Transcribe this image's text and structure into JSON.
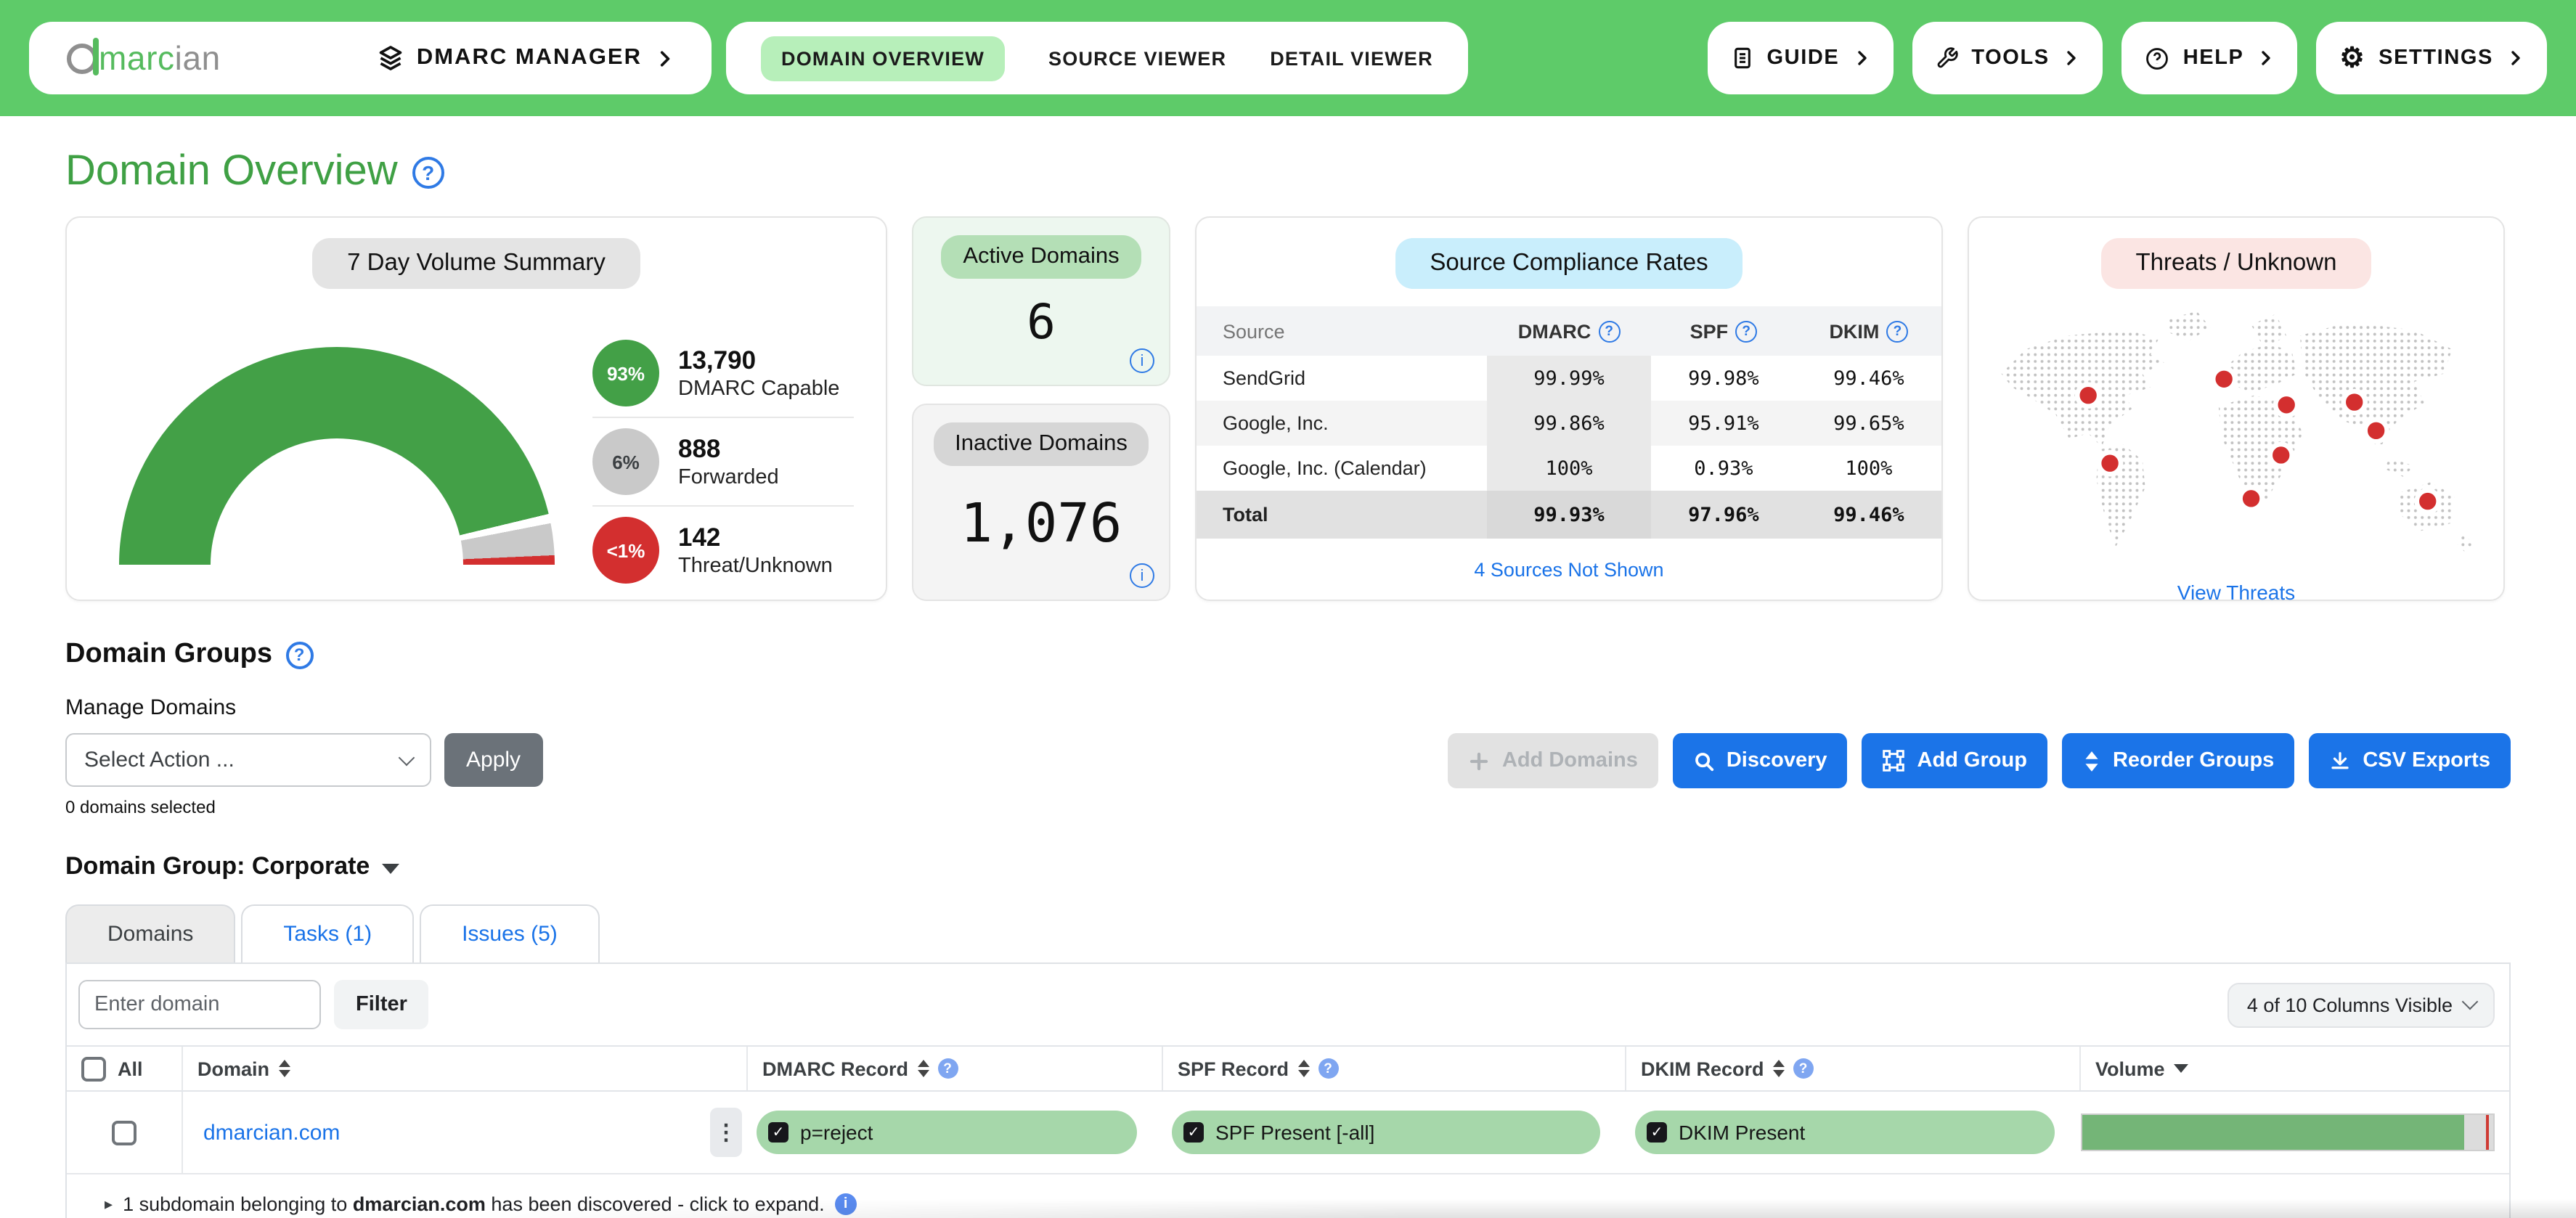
{
  "topbar": {
    "logo": {
      "green": "marc",
      "gray": "ian"
    },
    "product_label": "DMARC MANAGER",
    "nav_tabs": [
      {
        "label": "DOMAIN OVERVIEW"
      },
      {
        "label": "SOURCE VIEWER"
      },
      {
        "label": "DETAIL VIEWER"
      }
    ],
    "menu": [
      {
        "label": "GUIDE"
      },
      {
        "label": "TOOLS"
      },
      {
        "label": "HELP"
      },
      {
        "label": "SETTINGS"
      }
    ]
  },
  "page_title": "Domain Overview",
  "volume_summary": {
    "title": "7 Day Volume Summary",
    "gauge": {
      "segments": [
        {
          "color": "#43a047",
          "deg": 166.5
        },
        {
          "color": "#ffffff",
          "deg": 2.5
        },
        {
          "color": "#c9c9c9",
          "deg": 8.5
        },
        {
          "color": "#d32f2f",
          "deg": 2.5
        }
      ]
    },
    "legend": [
      {
        "pct": "93%",
        "pct_color": "#ffffff",
        "color": "#43a047",
        "value": "13,790",
        "label": "DMARC Capable"
      },
      {
        "pct": "6%",
        "pct_color": "#3c4043",
        "color": "#c9c9c9",
        "value": "888",
        "label": "Forwarded"
      },
      {
        "pct": "<1%",
        "pct_color": "#ffffff",
        "color": "#d32f2f",
        "value": "142",
        "label": "Threat/Unknown"
      }
    ]
  },
  "active_domains": {
    "title": "Active Domains",
    "value": "6"
  },
  "inactive_domains": {
    "title": "Inactive Domains",
    "value": "1,076"
  },
  "compliance": {
    "title": "Source Compliance Rates",
    "col_source": "Source",
    "col_dmarc": "DMARC",
    "col_spf": "SPF",
    "col_dkim": "DKIM",
    "rows": [
      {
        "source": "SendGrid",
        "dmarc": "99.99%",
        "spf": "99.98%",
        "dkim": "99.46%"
      },
      {
        "source": "Google, Inc.",
        "dmarc": "99.86%",
        "spf": "95.91%",
        "dkim": "99.65%"
      },
      {
        "source": "Google, Inc. (Calendar)",
        "dmarc": "100%",
        "spf": "0.93%",
        "dkim": "100%"
      }
    ],
    "total": {
      "source": "Total",
      "dmarc": "99.93%",
      "spf": "97.96%",
      "dkim": "99.46%"
    },
    "footer_link": "4 Sources Not Shown"
  },
  "threats": {
    "title": "Threats / Unknown",
    "link": "View Threats"
  },
  "domain_groups": {
    "heading": "Domain Groups",
    "manage_label": "Manage Domains",
    "select_value": "Select Action ...",
    "apply": "Apply",
    "selected_note": "0 domains selected",
    "add_domains": "Add Domains",
    "discovery": "Discovery",
    "add_group": "Add Group",
    "reorder": "Reorder Groups",
    "csv": "CSV Exports",
    "group_label": "Domain Group: Corporate"
  },
  "domains_table": {
    "tabs": [
      {
        "label": "Domains"
      },
      {
        "label": "Tasks (1)"
      },
      {
        "label": "Issues (5)"
      }
    ],
    "filter_placeholder": "Enter domain",
    "filter_button": "Filter",
    "columns_button": "4 of 10 Columns Visible",
    "header": {
      "all": "All",
      "domain": "Domain",
      "dmarc": "DMARC Record",
      "spf": "SPF Record",
      "dkim": "DKIM Record",
      "volume": "Volume"
    },
    "row": {
      "domain": "dmarcian.com",
      "dmarc_badge": "p=reject",
      "spf_badge": "SPF Present [-all]",
      "dkim_badge": "DKIM Present",
      "volume": {
        "green": 92.8,
        "gray": 5.6,
        "red": 0.7,
        "tail": 0.9
      }
    },
    "footer": {
      "prefix": "1 subdomain belonging to ",
      "bold": "dmarcian.com",
      "suffix": " has been discovered - click to expand."
    }
  },
  "colors": {
    "brand_green": "#5ecb69",
    "link_blue": "#1a73e8",
    "button_blue": "#1b74e8"
  }
}
